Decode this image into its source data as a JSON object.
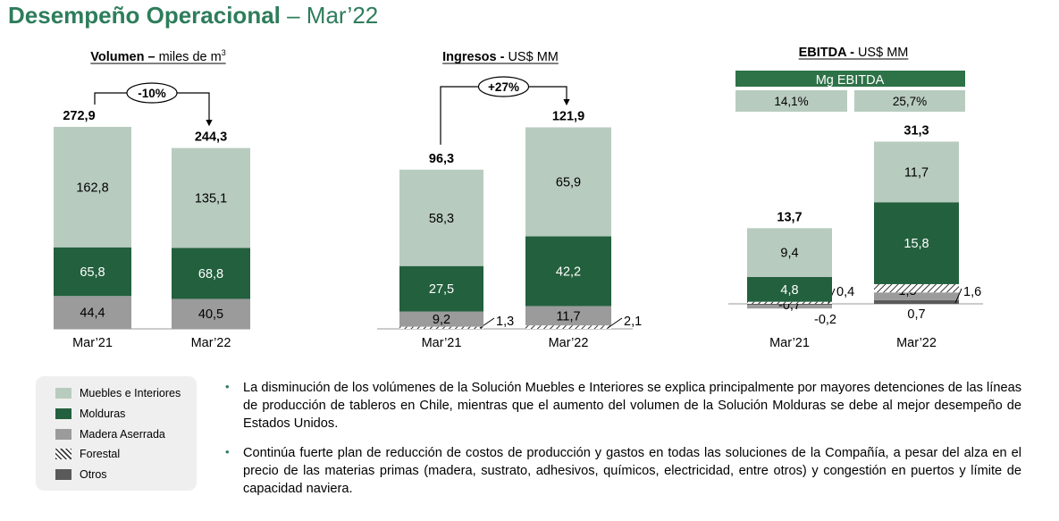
{
  "title": "Desempeño Operacional",
  "subtitle": "– Mar’22",
  "colors": {
    "muebles": "#b8cbbf",
    "molduras": "#23603e",
    "madera": "#9b9b9b",
    "otros": "#5a5a5a",
    "accent": "#2e7d5b",
    "mg_header": "#2e7248",
    "mg_box": "#b8cbbf"
  },
  "legend": [
    {
      "name": "Muebles e Interiores",
      "color": "#b8cbbf",
      "pattern": "solid"
    },
    {
      "name": "Molduras",
      "color": "#23603e",
      "pattern": "solid"
    },
    {
      "name": "Madera Aserrada",
      "color": "#9b9b9b",
      "pattern": "solid"
    },
    {
      "name": "Forestal",
      "color": "#ffffff",
      "pattern": "hatch"
    },
    {
      "name": "Otros",
      "color": "#5a5a5a",
      "pattern": "solid"
    }
  ],
  "chart_data": [
    {
      "type": "bar",
      "stacked": true,
      "title_bold": "Volumen –",
      "title_rest": "miles de m",
      "title_sup": "3",
      "categories": [
        "Mar’21",
        "Mar’22"
      ],
      "series": [
        {
          "name": "Madera Aserrada",
          "values": [
            44.4,
            40.5
          ],
          "labels": [
            "44,4",
            "40,5"
          ]
        },
        {
          "name": "Molduras",
          "values": [
            65.8,
            68.8
          ],
          "labels": [
            "65,8",
            "68,8"
          ]
        },
        {
          "name": "Muebles e Interiores",
          "values": [
            162.8,
            135.1
          ],
          "labels": [
            "162,8",
            "135,1"
          ]
        }
      ],
      "totals": [
        "272,9",
        "244,3"
      ],
      "change": "-10%"
    },
    {
      "type": "bar",
      "stacked": true,
      "title_bold": "Ingresos -",
      "title_rest": "US$ MM",
      "categories": [
        "Mar’21",
        "Mar’22"
      ],
      "series": [
        {
          "name": "Forestal",
          "values": [
            1.3,
            2.1
          ],
          "labels": [
            "1,3",
            "2,1"
          ]
        },
        {
          "name": "Madera Aserrada",
          "values": [
            9.2,
            11.7
          ],
          "labels": [
            "9,2",
            "11,7"
          ]
        },
        {
          "name": "Molduras",
          "values": [
            27.5,
            42.2
          ],
          "labels": [
            "27,5",
            "42,2"
          ]
        },
        {
          "name": "Muebles e Interiores",
          "values": [
            58.3,
            65.9
          ],
          "labels": [
            "58,3",
            "65,9"
          ]
        }
      ],
      "totals": [
        "96,3",
        "121,9"
      ],
      "change": "+27%"
    },
    {
      "type": "bar",
      "stacked": true,
      "title_bold": "EBITDA -",
      "title_rest": "US$ MM",
      "categories": [
        "Mar’21",
        "Mar’22"
      ],
      "series": [
        {
          "name": "Otros",
          "values": [
            -0.2,
            0.7
          ],
          "labels": [
            "-0,2",
            "0,7"
          ]
        },
        {
          "name": "Madera Aserrada",
          "values": [
            -0.7,
            1.5
          ],
          "labels": [
            "-0,7",
            "1,5"
          ]
        },
        {
          "name": "Forestal",
          "values": [
            0.4,
            1.6
          ],
          "labels": [
            "0,4",
            "1,6"
          ]
        },
        {
          "name": "Molduras",
          "values": [
            4.8,
            15.8
          ],
          "labels": [
            "4,8",
            "15,8"
          ]
        },
        {
          "name": "Muebles e Interiores",
          "values": [
            9.4,
            11.7
          ],
          "labels": [
            "9,4",
            "11,7"
          ]
        }
      ],
      "totals": [
        "13,7",
        "31,3"
      ],
      "margin_header": "Mg EBITDA",
      "margins": [
        "14,1%",
        "25,7%"
      ]
    }
  ],
  "bullets": [
    "La disminución de los volúmenes de la Solución Muebles e Interiores se explica principalmente por mayores detenciones de las líneas de producción de tableros en Chile, mientras que el aumento del volumen de la Solución Molduras se debe al mejor desempeño de Estados Unidos.",
    "Continúa fuerte plan de reducción de costos de producción y gastos en todas las soluciones de la Compañía, a pesar del alza en el precio de las materias primas (madera, sustrato, adhesivos, químicos, electricidad, entre otros) y congestión en puertos y límite de capacidad naviera."
  ]
}
